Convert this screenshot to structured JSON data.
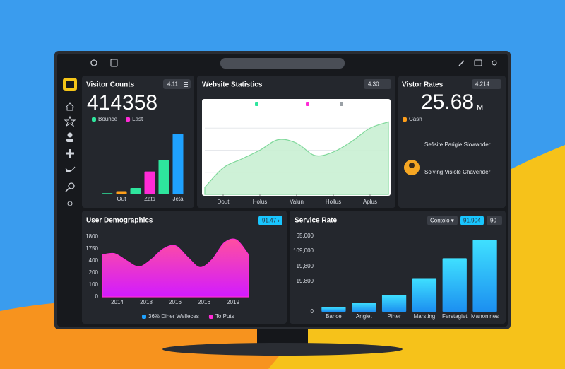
{
  "visitor_counts": {
    "title": "Visitor Counts",
    "badge": "4.11",
    "total": "414358",
    "legend": [
      {
        "name": "Bounce",
        "color": "#2ee59d"
      },
      {
        "name": "Last",
        "color": "#ff2bd6"
      }
    ],
    "chart": {
      "type": "bar",
      "categories": [
        null,
        "Out",
        null,
        "Zats",
        null,
        "Jeta"
      ],
      "values": [
        2,
        5,
        10,
        36,
        54,
        95
      ],
      "colors": [
        "#2ee59d",
        "#ff9f1a",
        "#2ee59d",
        "#ff2bd6",
        "#2ee59d",
        "#1fa2ff"
      ],
      "ylim": [
        0,
        100
      ]
    }
  },
  "website_statistics": {
    "title": "Website Statistics",
    "badge": "4.30",
    "legend_colors": [
      "#2ee59d",
      "#ff2bd6",
      "#9aa0a6"
    ],
    "chart": {
      "type": "area",
      "x": [
        0,
        1,
        2,
        3,
        4,
        5,
        6,
        7,
        8,
        9,
        10
      ],
      "values": [
        8,
        30,
        40,
        50,
        62,
        58,
        44,
        48,
        60,
        75,
        82
      ],
      "xlim": [
        0,
        10
      ],
      "ylim": [
        0,
        100
      ],
      "xticks": [
        {
          "value": 1,
          "label": "Dout"
        },
        {
          "value": 3,
          "label": "Holus"
        },
        {
          "value": 5,
          "label": "Valun"
        },
        {
          "value": 7,
          "label": "Hollus"
        },
        {
          "value": 9,
          "label": "Aplus"
        }
      ],
      "color": "#7fd89a",
      "grid": true
    }
  },
  "visitor_rates": {
    "title": "Vistor Rates",
    "badge": "4.214",
    "value": "25.68",
    "unit": "M",
    "legend": [
      {
        "name": "Cash",
        "color": "#ff9f1a"
      }
    ],
    "notes": [
      "Sefisite Parigie Slowander",
      "Solving Visiole Chavender"
    ]
  },
  "user_demographics": {
    "title": "User Demographics",
    "badge": "91.47 ›",
    "y_labels": [
      "1800",
      "1750",
      "400",
      "200",
      "100",
      "0"
    ],
    "x_labels": [
      "2014",
      "2018",
      "2016",
      "2016",
      "2019"
    ],
    "chart": {
      "type": "area",
      "values": [
        70,
        72,
        60,
        50,
        62,
        80,
        85,
        66,
        49,
        62,
        90,
        95,
        70
      ],
      "ylim": [
        0,
        100
      ],
      "color": "#ff2bd6"
    },
    "legend": [
      {
        "name": "36% Diner Welleces",
        "color": "#1fa2ff"
      },
      {
        "name": "To Puts",
        "color": "#ff2bd6"
      }
    ]
  },
  "service_rate": {
    "title": "Service Rate",
    "dropdown": "Contolo ▾",
    "badges": [
      "91.904",
      "90"
    ],
    "y_labels": [
      "65,000",
      "109,000",
      "19,800",
      "19,800",
      "0"
    ],
    "chart": {
      "type": "bar",
      "categories": [
        "Bance",
        "Angiet",
        "Pirter",
        "Marsting",
        "Ferstagiet",
        "Manonines"
      ],
      "values": [
        6,
        12,
        22,
        44,
        70,
        94
      ],
      "ylim": [
        0,
        100
      ],
      "color": "#22c9f5"
    }
  }
}
